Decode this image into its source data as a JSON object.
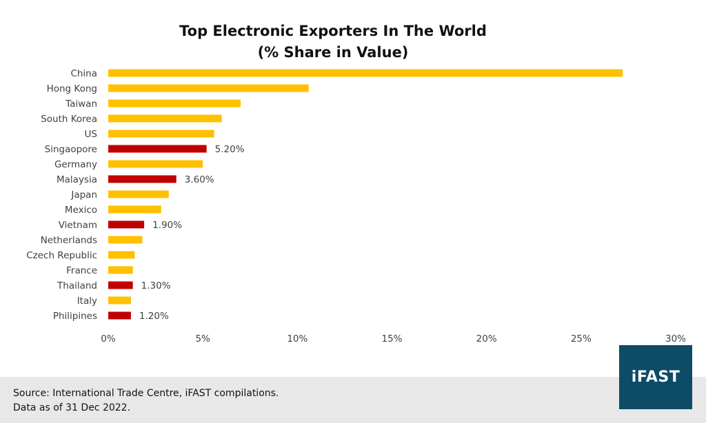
{
  "title_line1": "Top Electronic Exporters In The World",
  "title_line2": "(% Share in Value)",
  "footer": {
    "source_line1": "Source: International Trade Centre, iFAST compilations.",
    "source_line2": "Data as of 31 Dec 2022."
  },
  "logo_text": "iFAST",
  "colors": {
    "default_bar": "#FFC000",
    "highlight_bar": "#C00000",
    "footer_bg": "#E8E8E8",
    "logo_bg": "#0E4B66"
  },
  "chart_data": {
    "type": "bar",
    "orientation": "horizontal",
    "title": "Top Electronic Exporters In The World (% Share in Value)",
    "categories": [
      "China",
      "Hong Kong",
      "Taiwan",
      "South Korea",
      "US",
      "Singaopore",
      "Germany",
      "Malaysia",
      "Japan",
      "Mexico",
      "Vietnam",
      "Netherlands",
      "Czech Republic",
      "France",
      "Thailand",
      "Italy",
      "Philipines"
    ],
    "values": [
      27.2,
      10.6,
      7.0,
      6.0,
      5.6,
      5.2,
      5.0,
      3.6,
      3.2,
      2.8,
      1.9,
      1.8,
      1.4,
      1.3,
      1.3,
      1.2,
      1.2
    ],
    "highlighted": [
      false,
      false,
      false,
      false,
      false,
      true,
      false,
      true,
      false,
      false,
      true,
      false,
      false,
      false,
      true,
      false,
      true
    ],
    "data_labels": [
      "",
      "",
      "",
      "",
      "",
      "5.20%",
      "",
      "3.60%",
      "",
      "",
      "1.90%",
      "",
      "",
      "",
      "1.30%",
      "",
      "1.20%"
    ],
    "xlim": [
      0,
      30
    ],
    "xticks": [
      0,
      5,
      10,
      15,
      20,
      25,
      30
    ],
    "xtick_labels": [
      "0%",
      "5%",
      "10%",
      "15%",
      "20%",
      "25%",
      "30%"
    ],
    "xlabel": "",
    "ylabel": "",
    "grid": false,
    "legend": "none"
  }
}
